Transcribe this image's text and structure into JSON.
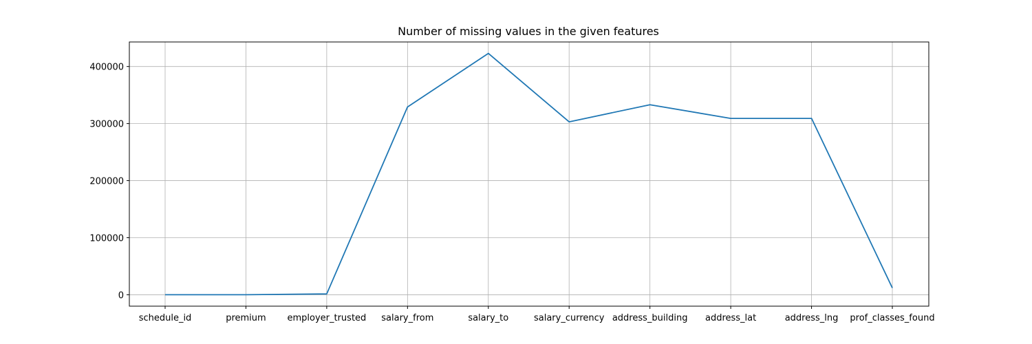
{
  "colors": {
    "line": "#1f77b4",
    "grid": "#b0b0b0",
    "axes": "#000000",
    "background": "#ffffff"
  },
  "chart_data": {
    "type": "line",
    "title": "Number of missing values in the given features",
    "xlabel": "",
    "ylabel": "",
    "categories": [
      "schedule_id",
      "premium",
      "employer_trusted",
      "salary_from",
      "salary_to",
      "salary_currency",
      "address_building",
      "address_lat",
      "address_lng",
      "prof_classes_found"
    ],
    "series": [
      {
        "values": [
          0,
          0,
          1500,
          329000,
          423000,
          303000,
          333000,
          309000,
          309000,
          12000
        ]
      }
    ],
    "ylim": [
      -20000,
      443000
    ],
    "yticks": [
      0,
      100000,
      200000,
      300000,
      400000
    ],
    "ytick_labels": [
      "0",
      "100000",
      "200000",
      "300000",
      "400000"
    ],
    "grid": true,
    "legend": "none"
  }
}
